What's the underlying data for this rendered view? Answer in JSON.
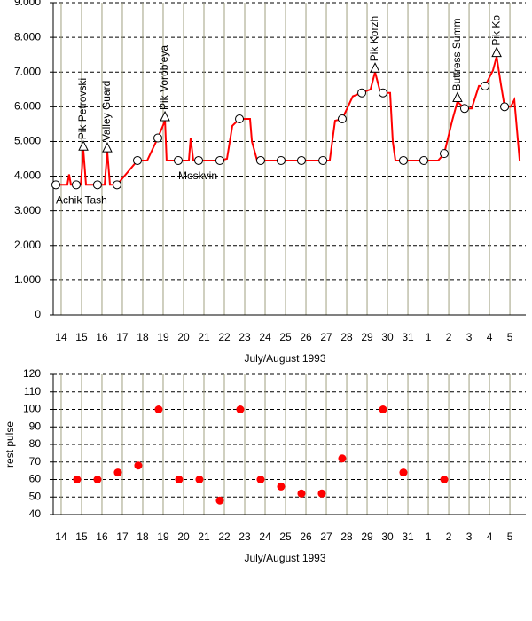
{
  "chart_data": [
    {
      "type": "line",
      "x_label": "July/August 1993",
      "xlim": [
        13.61,
        36.78
      ],
      "xticks": [
        14,
        15,
        16,
        17,
        18,
        19,
        20,
        21,
        22,
        23,
        24,
        25,
        26,
        27,
        28,
        29,
        30,
        31,
        {
          "value": 32,
          "label": "1"
        },
        {
          "value": 33,
          "label": "2"
        },
        {
          "value": 34,
          "label": "3"
        },
        {
          "value": 35,
          "label": "4"
        },
        {
          "value": 36,
          "label": "5"
        }
      ],
      "ylim": [
        0,
        9000
      ],
      "yticks": [
        0,
        {
          "value": 1000,
          "label": "1.000"
        },
        {
          "value": 2000,
          "label": "2.000"
        },
        {
          "value": 3000,
          "label": "3.000"
        },
        {
          "value": 4000,
          "label": "4.000"
        },
        {
          "value": 5000,
          "label": "5.000"
        },
        {
          "value": 6000,
          "label": "6.000"
        },
        {
          "value": 7000,
          "label": "7.000"
        },
        {
          "value": 8000,
          "label": "8.000"
        },
        {
          "value": 9000,
          "label": "9.000"
        }
      ],
      "grid": true,
      "series": [
        {
          "color": "#ff0000",
          "marker": "none",
          "x": [
            13.61,
            13.74,
            14.3,
            14.39,
            14.48,
            14.74,
            14.96,
            15.09,
            15.22,
            15.78,
            16.13,
            16.26,
            16.39,
            16.74,
            17.74,
            18.22,
            18.74,
            19.09,
            19.17,
            19.74,
            20.26,
            20.35,
            20.48,
            20.74,
            21.78,
            22.13,
            22.39,
            22.74,
            23.26,
            23.35,
            23.61,
            23.78,
            24.78,
            25.78,
            26.83,
            27.17,
            27.43,
            27.78,
            28.3,
            28.74,
            29.17,
            29.39,
            29.61,
            29.78,
            30.13,
            30.26,
            30.39,
            30.78,
            31.78,
            32.48,
            32.78,
            33.17,
            33.43,
            33.78,
            34.13,
            34.48,
            34.78,
            35.17,
            35.35,
            35.57,
            35.74,
            36.04,
            36.22,
            36.48
          ],
          "values": [
            3750,
            3750,
            3750,
            4050,
            3750,
            3750,
            3750,
            4750,
            3750,
            3750,
            3750,
            4700,
            3750,
            3750,
            4450,
            4450,
            5100,
            5600,
            4450,
            4450,
            4450,
            5100,
            4450,
            4450,
            4450,
            4500,
            5450,
            5650,
            5650,
            5000,
            4450,
            4450,
            4450,
            4450,
            4450,
            4450,
            5600,
            5650,
            6300,
            6400,
            6500,
            7000,
            6500,
            6400,
            6400,
            5000,
            4450,
            4450,
            4450,
            4450,
            4650,
            5600,
            6150,
            5950,
            5950,
            6600,
            6600,
            7050,
            7450,
            6600,
            6000,
            6000,
            6200,
            4450
          ]
        },
        {
          "color": "#000000",
          "marker": "circle",
          "x": [
            13.74,
            14.74,
            15.78,
            16.74,
            17.74,
            18.74,
            19.74,
            20.74,
            21.78,
            22.74,
            23.78,
            24.78,
            25.78,
            26.83,
            27.78,
            28.74,
            29.78,
            30.78,
            31.78,
            32.78,
            33.78,
            34.78,
            35.74
          ],
          "values": [
            3750,
            3750,
            3750,
            3750,
            4450,
            5100,
            4450,
            4450,
            4450,
            5650,
            4450,
            4450,
            4450,
            4450,
            5650,
            6400,
            6400,
            4450,
            4450,
            4650,
            5950,
            6600,
            6000
          ]
        }
      ],
      "annotations": [
        {
          "text": "Pik Petrovski",
          "x": 15.09,
          "y": 4750,
          "marker": "triangle"
        },
        {
          "text": "Valley Guard",
          "x": 16.26,
          "y": 4700,
          "marker": "triangle"
        },
        {
          "text": "Pik Vorob'eya",
          "x": 19.09,
          "y": 5600,
          "marker": "triangle"
        },
        {
          "text": "Pik Korzh",
          "x": 29.39,
          "y": 7000,
          "marker": "triangle"
        },
        {
          "text": "Buttress Summ",
          "x": 33.43,
          "y": 6150,
          "marker": "triangle"
        },
        {
          "text": "Pik Ko",
          "x": 35.35,
          "y": 7450,
          "marker": "triangle"
        },
        {
          "text": "Achik Tash",
          "x": 13.74,
          "y": 3750
        },
        {
          "text": "Moskvin",
          "x": 19.74,
          "y": 4450
        }
      ]
    },
    {
      "type": "scatter",
      "x_label": "July/August 1993",
      "y_label": "rest pulse",
      "xlim": [
        13.61,
        36.78
      ],
      "xticks": [
        14,
        15,
        16,
        17,
        18,
        19,
        20,
        21,
        22,
        23,
        24,
        25,
        26,
        27,
        28,
        29,
        30,
        31,
        {
          "value": 32,
          "label": "1"
        },
        {
          "value": 33,
          "label": "2"
        },
        {
          "value": 34,
          "label": "3"
        },
        {
          "value": 35,
          "label": "4"
        },
        {
          "value": 36,
          "label": "5"
        }
      ],
      "ylim": [
        40,
        120
      ],
      "yticks": [
        40,
        50,
        60,
        70,
        80,
        90,
        100,
        110,
        120
      ],
      "grid": true,
      "series": [
        {
          "color": "#ff0000",
          "marker": "dot",
          "x": [
            14.78,
            15.78,
            16.78,
            17.78,
            18.78,
            19.78,
            20.78,
            21.78,
            22.78,
            23.78,
            24.78,
            25.78,
            26.78,
            27.78,
            29.78,
            30.78,
            32.78
          ],
          "values": [
            60,
            60,
            64,
            68,
            100,
            60,
            60,
            48,
            100,
            60,
            56,
            52,
            52,
            72,
            100,
            64,
            60
          ]
        }
      ]
    }
  ]
}
